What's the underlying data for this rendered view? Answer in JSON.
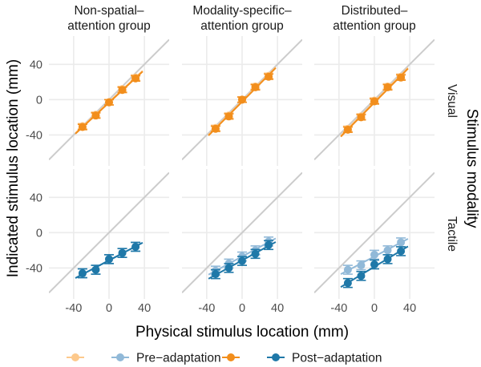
{
  "chart_data": {
    "type": "scatter",
    "xlabel": "Physical stimulus location (mm)",
    "ylabel": "Indicated stimulus location (mm)",
    "row_strip_title": "Stimulus modality",
    "columns": [
      "Non-spatial–\nattention group",
      "Modality-specific–\nattention group",
      "Distributed–\nattention group"
    ],
    "rows": [
      "Visual",
      "Tactile"
    ],
    "xlim": [
      -68,
      68
    ],
    "ylim": [
      -75,
      72
    ],
    "xticks": [
      -40,
      0,
      40
    ],
    "yticks": [
      -40,
      0,
      40
    ],
    "grid": true,
    "identity_line": true,
    "x": [
      -30,
      -15,
      0,
      15,
      30
    ],
    "legend": {
      "placement": "bottom",
      "entries": [
        {
          "label": "",
          "color": "#FDC98C"
        },
        {
          "label": "Pre−adaptation",
          "color": "#91B9D8"
        },
        {
          "label": "",
          "color": "#F28E1C"
        },
        {
          "label": "Post−adaptation",
          "color": "#1F78A8"
        }
      ]
    },
    "panels": [
      {
        "row": "Visual",
        "column": 0,
        "series": [
          {
            "name": "Pre-adaptation",
            "values": [
              -30,
              -17,
              -3,
              12,
              25
            ],
            "err": 3
          },
          {
            "name": "Post-adaptation",
            "values": [
              -31,
              -18,
              -3,
              11,
              24
            ],
            "err": 3
          }
        ]
      },
      {
        "row": "Visual",
        "column": 1,
        "series": [
          {
            "name": "Pre-adaptation",
            "values": [
              -32,
              -18,
              0,
              15,
              27
            ],
            "err": 3
          },
          {
            "name": "Post-adaptation",
            "values": [
              -33,
              -19,
              0,
              14,
              26
            ],
            "err": 3
          }
        ]
      },
      {
        "row": "Visual",
        "column": 2,
        "series": [
          {
            "name": "Pre-adaptation",
            "values": [
              -33,
              -19,
              -1,
              15,
              26
            ],
            "err": 3
          },
          {
            "name": "Post-adaptation",
            "values": [
              -34,
              -20,
              -2,
              14,
              25
            ],
            "err": 3
          }
        ]
      },
      {
        "row": "Tactile",
        "column": 0,
        "series": [
          {
            "name": "Pre-adaptation",
            "values": [
              -46,
              -42,
              -30,
              -23,
              -16
            ],
            "err": 5
          },
          {
            "name": "Post-adaptation",
            "values": [
              -46,
              -42,
              -30,
              -23,
              -16
            ],
            "err": 5
          }
        ]
      },
      {
        "row": "Tactile",
        "column": 1,
        "series": [
          {
            "name": "Pre-adaptation",
            "values": [
              -43,
              -35,
              -27,
              -20,
              -10
            ],
            "err": 5
          },
          {
            "name": "Post-adaptation",
            "values": [
              -47,
              -40,
              -32,
              -24,
              -14
            ],
            "err": 5
          }
        ]
      },
      {
        "row": "Tactile",
        "column": 2,
        "series": [
          {
            "name": "Pre-adaptation",
            "values": [
              -42,
              -37,
              -25,
              -20,
              -11
            ],
            "err": 5
          },
          {
            "name": "Post-adaptation",
            "values": [
              -57,
              -49,
              -36,
              -30,
              -21
            ],
            "err": 5
          }
        ]
      }
    ]
  }
}
